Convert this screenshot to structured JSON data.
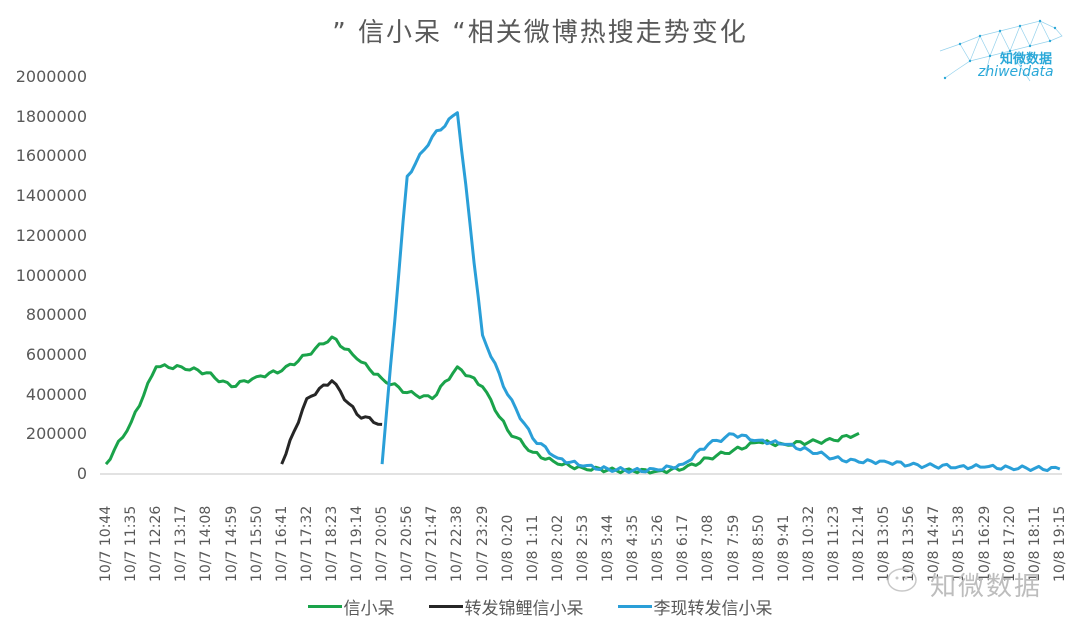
{
  "title": "” 信小呆 “相关微博热搜走势变化",
  "logo": {
    "name_cn": "知微数据",
    "name_en": "zhiweidata",
    "color": "#2aa8d8"
  },
  "watermark": {
    "text": "知微数据"
  },
  "legend": [
    {
      "label": "信小呆",
      "color": "#1aa34a"
    },
    {
      "label": "转发锦鲤信小呆",
      "color": "#262626"
    },
    {
      "label": "李现转发信小呆",
      "color": "#2a9fd8"
    }
  ],
  "y_axis": {
    "ticks": [
      "0",
      "200000",
      "400000",
      "600000",
      "800000",
      "1000000",
      "1200000",
      "1400000",
      "1600000",
      "1800000",
      "2000000"
    ]
  },
  "x_axis": {
    "ticks": [
      "10/7 10:44",
      "10/7 11:35",
      "10/7 12:26",
      "10/7 13:17",
      "10/7 14:08",
      "10/7 14:59",
      "10/7 15:50",
      "10/7 16:41",
      "10/7 17:32",
      "10/7 18:23",
      "10/7 19:14",
      "10/7 20:05",
      "10/7 20:56",
      "10/7 21:47",
      "10/7 22:38",
      "10/7 23:29",
      "10/8 0:20",
      "10/8 1:11",
      "10/8 2:02",
      "10/8 2:53",
      "10/8 3:44",
      "10/8 4:35",
      "10/8 5:26",
      "10/8 6:17",
      "10/8 7:08",
      "10/8 7:59",
      "10/8 8:50",
      "10/8 9:41",
      "10/8 10:32",
      "10/8 11:23",
      "10/8 12:14",
      "10/8 13:05",
      "10/8 13:56",
      "10/8 14:47",
      "10/8 15:38",
      "10/8 16:29",
      "10/8 17:20",
      "10/8 18:11",
      "10/8 19:15"
    ]
  },
  "chart_data": {
    "type": "line",
    "title": "” 信小呆 “相关微博热搜走势变化",
    "xlabel": "",
    "ylabel": "",
    "ylim": [
      0,
      2000000
    ],
    "grid": false,
    "legend_position": "bottom",
    "categories": [
      "10/7 10:44",
      "10/7 11:35",
      "10/7 12:26",
      "10/7 13:17",
      "10/7 14:08",
      "10/7 14:59",
      "10/7 15:50",
      "10/7 16:41",
      "10/7 17:32",
      "10/7 18:23",
      "10/7 19:14",
      "10/7 20:05",
      "10/7 20:56",
      "10/7 21:47",
      "10/7 22:38",
      "10/7 23:29",
      "10/8 0:20",
      "10/8 1:11",
      "10/8 2:02",
      "10/8 2:53",
      "10/8 3:44",
      "10/8 4:35",
      "10/8 5:26",
      "10/8 6:17",
      "10/8 7:08",
      "10/8 7:59",
      "10/8 8:50",
      "10/8 9:41",
      "10/8 10:32",
      "10/8 11:23",
      "10/8 12:14",
      "10/8 13:05",
      "10/8 13:56",
      "10/8 14:47",
      "10/8 15:38",
      "10/8 16:29",
      "10/8 17:20",
      "10/8 18:11",
      "10/8 19:15"
    ],
    "series": [
      {
        "name": "信小呆",
        "color": "#1aa34a",
        "values": [
          50000,
          260000,
          540000,
          540000,
          510000,
          440000,
          490000,
          520000,
          600000,
          690000,
          580000,
          480000,
          410000,
          380000,
          540000,
          440000,
          220000,
          110000,
          50000,
          30000,
          20000,
          15000,
          15000,
          25000,
          80000,
          120000,
          160000,
          150000,
          160000,
          170000,
          205000,
          null,
          null,
          null,
          null,
          null,
          null,
          null,
          null
        ]
      },
      {
        "name": "转发锦鲤信小呆",
        "color": "#262626",
        "values": [
          null,
          null,
          null,
          null,
          null,
          null,
          null,
          50000,
          380000,
          470000,
          300000,
          250000,
          null,
          null,
          null,
          null,
          null,
          null,
          null,
          null,
          null,
          null,
          null,
          null,
          null,
          null,
          null,
          null,
          null,
          null,
          null,
          null,
          null,
          null,
          null,
          null,
          null,
          null,
          null
        ]
      },
      {
        "name": "李现转发信小呆",
        "color": "#2a9fd8",
        "values": [
          null,
          null,
          null,
          null,
          null,
          null,
          null,
          null,
          null,
          null,
          null,
          50000,
          1500000,
          1700000,
          1820000,
          700000,
          400000,
          180000,
          80000,
          40000,
          25000,
          18000,
          20000,
          50000,
          150000,
          200000,
          170000,
          150000,
          120000,
          80000,
          60000,
          65000,
          45000,
          40000,
          38000,
          35000,
          32000,
          28000,
          25000
        ]
      }
    ]
  }
}
